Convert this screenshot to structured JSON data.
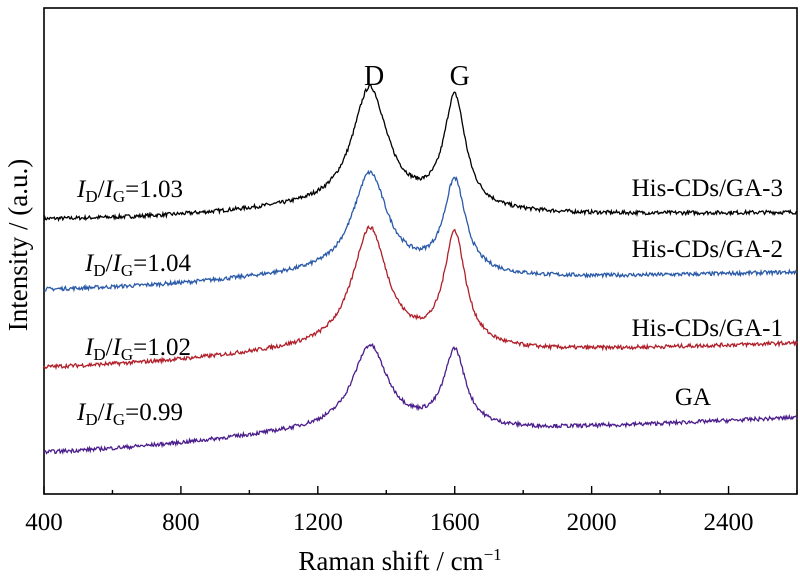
{
  "chart_data": {
    "type": "line",
    "xlabel_main": "Raman shift / cm",
    "xlabel_sup": "−1",
    "ylabel": "Intensity / (a.u.)",
    "xlim": [
      400,
      2600
    ],
    "xticks": [
      "400",
      "800",
      "1200",
      "1600",
      "2000",
      "2400"
    ],
    "peak_labels": [
      {
        "text": "D",
        "x": 1350
      },
      {
        "text": "G",
        "x": 1600
      }
    ],
    "series": [
      {
        "name": "His-CDs/GA-3",
        "color": "#000000",
        "ratio": "1.03",
        "offset": 0.565,
        "baseline": [
          0,
          0.014
        ],
        "D_height": 0.245,
        "G_height": 0.228
      },
      {
        "name": "His-CDs/GA-2",
        "color": "#2a5aa8",
        "ratio": "1.04",
        "offset": 0.42,
        "baseline": [
          0,
          0.036
        ],
        "D_height": 0.205,
        "G_height": 0.19
      },
      {
        "name": "His-CDs/GA-1",
        "color": "#b0202a",
        "ratio": "1.02",
        "offset": 0.26,
        "baseline": [
          0,
          0.05
        ],
        "D_height": 0.245,
        "G_height": 0.232
      },
      {
        "name": "GA",
        "color": "#4b1e8c",
        "ratio": "0.99",
        "offset": 0.085,
        "baseline": [
          0,
          0.072
        ],
        "D_height": 0.17,
        "G_height": 0.157
      }
    ],
    "ratio_label": {
      "I": "I",
      "D": "D",
      "G": "G",
      "slash": "/",
      "eq": "="
    }
  }
}
